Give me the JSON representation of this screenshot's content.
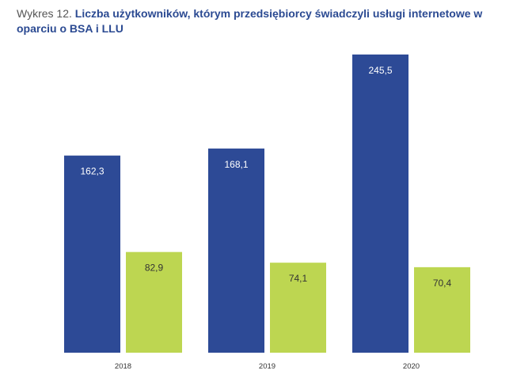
{
  "title": {
    "prefix": "Wykres 12.",
    "main": "Liczba użytkowników, którym przedsiębiorcy świadczyli usługi internetowe w oparciu o BSA i LLU"
  },
  "colors": {
    "series_1": "#2d4a96",
    "series_2": "#bdd651",
    "label_on_series_1": "#ffffff",
    "label_on_series_2": "#333333",
    "title": "#2b4a92"
  },
  "chart_data": {
    "type": "bar",
    "categories": [
      "2018",
      "2019",
      "2020"
    ],
    "series": [
      {
        "values": [
          162.3,
          168.1,
          245.5
        ],
        "labels": [
          "162,3",
          "168,1",
          "245,5"
        ]
      },
      {
        "values": [
          82.9,
          74.1,
          70.4
        ],
        "labels": [
          "82,9",
          "74,1",
          "70,4"
        ]
      }
    ],
    "ylim": [
      0,
      250
    ],
    "grid": false,
    "legend": "none",
    "xlabel": "",
    "ylabel": ""
  }
}
